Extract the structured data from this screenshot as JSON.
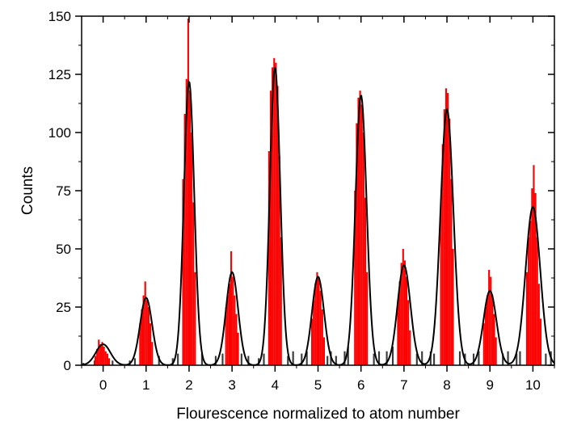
{
  "chart_data": {
    "type": "bar",
    "xlabel": "Flourescence normalized to atom number",
    "ylabel": "Counts",
    "xlim": [
      -0.5,
      10.5
    ],
    "ylim": [
      0,
      150
    ],
    "x_ticks": [
      0,
      1,
      2,
      3,
      4,
      5,
      6,
      7,
      8,
      9,
      10
    ],
    "y_ticks": [
      0,
      25,
      50,
      75,
      100,
      125,
      150
    ],
    "bin_width": 0.04,
    "colors": {
      "histogram": "#ff0000",
      "background_histogram": "#3a3a3a",
      "fit": "#000000"
    },
    "series": [
      {
        "kind": "background-histogram",
        "x": [
          -0.46,
          -0.2,
          0.22,
          0.62,
          0.74,
          1.3,
          1.62,
          1.74,
          2.3,
          2.62,
          2.78,
          3.22,
          3.38,
          3.62,
          3.74,
          4.3,
          4.42,
          4.62,
          4.74,
          5.22,
          5.3,
          5.42,
          5.62,
          5.7,
          6.3,
          6.42,
          6.6,
          6.74,
          7.3,
          7.42,
          7.62,
          7.7,
          8.3,
          8.42,
          8.62,
          8.74,
          9.3,
          9.42,
          9.62,
          9.7,
          10.3,
          10.42
        ],
        "values": [
          1,
          2,
          2,
          2,
          3,
          4,
          3,
          5,
          5,
          4,
          5,
          5,
          4,
          3,
          5,
          4,
          6,
          5,
          6,
          4,
          6,
          4,
          6,
          8,
          5,
          6,
          6,
          8,
          5,
          6,
          6,
          5,
          6,
          5,
          5,
          6,
          5,
          6,
          5,
          6,
          5,
          6
        ]
      },
      {
        "kind": "histogram",
        "x": [
          -0.18,
          -0.14,
          -0.1,
          -0.06,
          -0.02,
          0.02,
          0.06,
          0.1,
          0.14,
          0.86,
          0.9,
          0.94,
          0.98,
          1.02,
          1.06,
          1.1,
          1.14,
          1.86,
          1.9,
          1.94,
          1.98,
          2.02,
          2.06,
          2.1,
          2.14,
          2.86,
          2.9,
          2.94,
          2.98,
          3.02,
          3.06,
          3.1,
          3.14,
          3.86,
          3.9,
          3.94,
          3.98,
          4.02,
          4.06,
          4.1,
          4.14,
          4.86,
          4.9,
          4.94,
          4.98,
          5.02,
          5.06,
          5.1,
          5.14,
          5.86,
          5.9,
          5.94,
          5.98,
          6.02,
          6.06,
          6.1,
          6.14,
          6.86,
          6.9,
          6.94,
          6.98,
          7.02,
          7.06,
          7.1,
          7.14,
          7.86,
          7.9,
          7.94,
          7.98,
          8.02,
          8.06,
          8.1,
          8.14,
          8.86,
          8.9,
          8.94,
          8.98,
          9.02,
          9.06,
          9.1,
          9.14,
          9.86,
          9.9,
          9.94,
          9.98,
          10.02,
          10.06,
          10.1,
          10.14,
          10.18
        ],
        "values": [
          4,
          7,
          11,
          9,
          10,
          8,
          6,
          5,
          3,
          18,
          24,
          30,
          36,
          28,
          25,
          18,
          10,
          80,
          108,
          123,
          149,
          118,
          100,
          70,
          40,
          25,
          30,
          35,
          49,
          38,
          30,
          22,
          14,
          92,
          118,
          128,
          132,
          130,
          120,
          90,
          55,
          20,
          28,
          35,
          40,
          38,
          32,
          24,
          12,
          75,
          104,
          115,
          118,
          112,
          100,
          72,
          40,
          28,
          36,
          44,
          50,
          45,
          38,
          28,
          15,
          70,
          95,
          110,
          119,
          117,
          106,
          80,
          50,
          18,
          25,
          30,
          41,
          38,
          30,
          22,
          12,
          40,
          55,
          62,
          76,
          86,
          74,
          55,
          35,
          20
        ]
      }
    ],
    "fit": {
      "kind": "sum-of-gaussians",
      "peaks": [
        {
          "center": 0,
          "height": 9,
          "sigma": 0.17
        },
        {
          "center": 1,
          "height": 29,
          "sigma": 0.14
        },
        {
          "center": 2,
          "height": 122,
          "sigma": 0.12
        },
        {
          "center": 3,
          "height": 40,
          "sigma": 0.14
        },
        {
          "center": 4,
          "height": 128,
          "sigma": 0.12
        },
        {
          "center": 5,
          "height": 38,
          "sigma": 0.14
        },
        {
          "center": 6,
          "height": 116,
          "sigma": 0.13
        },
        {
          "center": 7,
          "height": 43,
          "sigma": 0.15
        },
        {
          "center": 8,
          "height": 110,
          "sigma": 0.15
        },
        {
          "center": 9,
          "height": 32,
          "sigma": 0.15
        },
        {
          "center": 10,
          "height": 68,
          "sigma": 0.17
        }
      ]
    }
  }
}
